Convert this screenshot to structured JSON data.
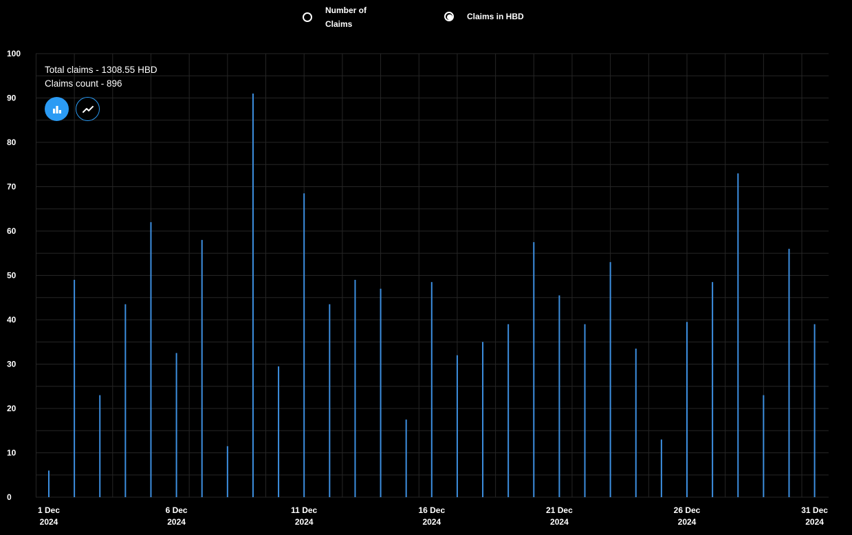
{
  "toggle": {
    "options": [
      {
        "label": "Number of Claims",
        "selected": false
      },
      {
        "label": "Claims in HBD",
        "selected": true
      }
    ]
  },
  "summary": {
    "total_claims": "Total claims - 1308.55 HBD",
    "claims_count": "Claims count - 896"
  },
  "view_buttons": [
    {
      "icon": "bar-chart-icon",
      "active": true
    },
    {
      "icon": "line-chart-icon",
      "active": false
    }
  ],
  "colors": {
    "bar": "#3d8fe0",
    "accent": "#2b9bf4",
    "background": "#000000",
    "grid": "#262626",
    "text": "#ffffff"
  },
  "chart_data": {
    "type": "bar",
    "x": [
      "2024-12-01",
      "2024-12-02",
      "2024-12-03",
      "2024-12-04",
      "2024-12-05",
      "2024-12-06",
      "2024-12-07",
      "2024-12-08",
      "2024-12-09",
      "2024-12-10",
      "2024-12-11",
      "2024-12-12",
      "2024-12-13",
      "2024-12-14",
      "2024-12-15",
      "2024-12-16",
      "2024-12-17",
      "2024-12-18",
      "2024-12-19",
      "2024-12-20",
      "2024-12-21",
      "2024-12-22",
      "2024-12-23",
      "2024-12-24",
      "2024-12-25",
      "2024-12-26",
      "2024-12-27",
      "2024-12-28",
      "2024-12-29",
      "2024-12-30",
      "2024-12-31"
    ],
    "values": [
      6,
      49,
      23,
      43.5,
      62,
      32.5,
      58,
      11.5,
      91,
      29.5,
      68.5,
      43.5,
      49,
      47,
      17.5,
      48.5,
      32,
      35,
      39,
      57.5,
      45.5,
      39,
      53,
      33.5,
      13,
      39.5,
      48.5,
      73,
      23,
      56,
      39
    ],
    "ylim": [
      0,
      100
    ],
    "y_ticks": [
      "0",
      "10",
      "20",
      "30",
      "40",
      "50",
      "60",
      "70",
      "80",
      "90",
      "100"
    ],
    "x_tick_labels": [
      {
        "day": "1 Dec",
        "year": "2024",
        "index": 0
      },
      {
        "day": "6 Dec",
        "year": "2024",
        "index": 5
      },
      {
        "day": "11 Dec",
        "year": "2024",
        "index": 10
      },
      {
        "day": "16 Dec",
        "year": "2024",
        "index": 15
      },
      {
        "day": "21 Dec",
        "year": "2024",
        "index": 20
      },
      {
        "day": "26 Dec",
        "year": "2024",
        "index": 25
      },
      {
        "day": "31 Dec",
        "year": "2024",
        "index": 30
      }
    ],
    "grid": true,
    "legend": "none"
  }
}
